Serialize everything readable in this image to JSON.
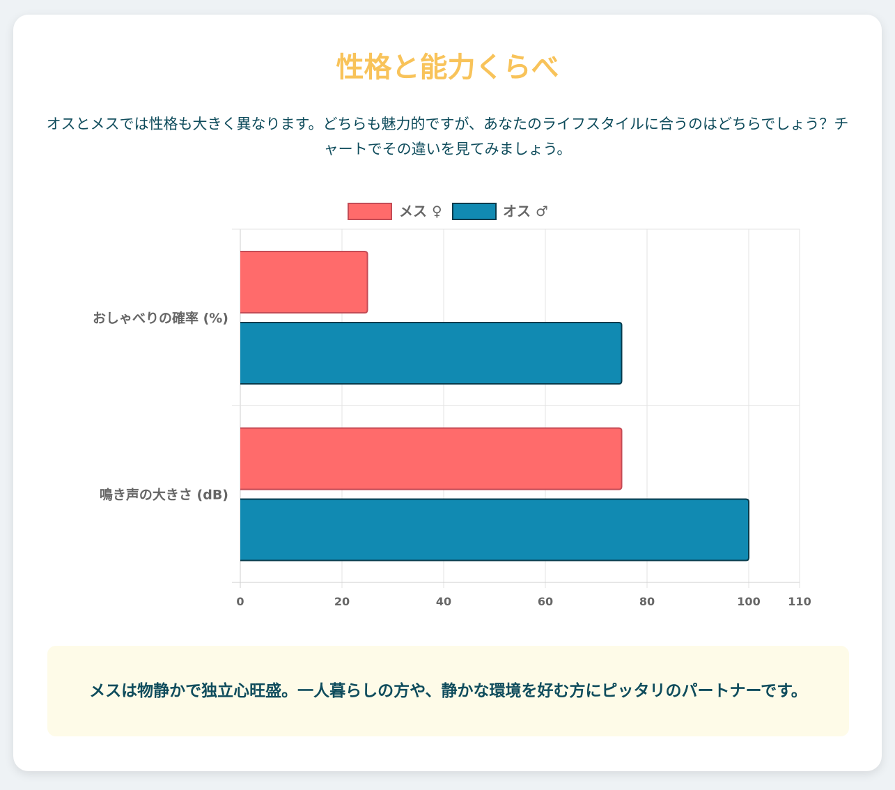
{
  "header": {
    "title": "性格と能力くらべ",
    "intro": "オスとメスでは性格も大きく異なります。どちらも魅力的ですが、あなたのライフスタイルに合うのはどちらでしょう？チャートでその違いを見てみましょう。"
  },
  "chart_data": {
    "type": "bar",
    "orientation": "horizontal",
    "categories": [
      "おしゃべりの確率 (%)",
      "鳴き声の大きさ (dB)"
    ],
    "series": [
      {
        "name": "メス ♀",
        "values": [
          25,
          75
        ],
        "color": "#ff6b6b",
        "border": "#c44b55"
      },
      {
        "name": "オス ♂",
        "values": [
          75,
          100
        ],
        "color": "#118ab2",
        "border": "#073b4c"
      }
    ],
    "xlim": [
      0,
      110
    ],
    "xticks": [
      0,
      20,
      40,
      60,
      80,
      100,
      110
    ],
    "grid": true,
    "legend": "top-center"
  },
  "note": {
    "text": "メスは物静かで独立心旺盛。一人暮らしの方や、静かな環境を好む方にピッタリのパートナーです。"
  }
}
